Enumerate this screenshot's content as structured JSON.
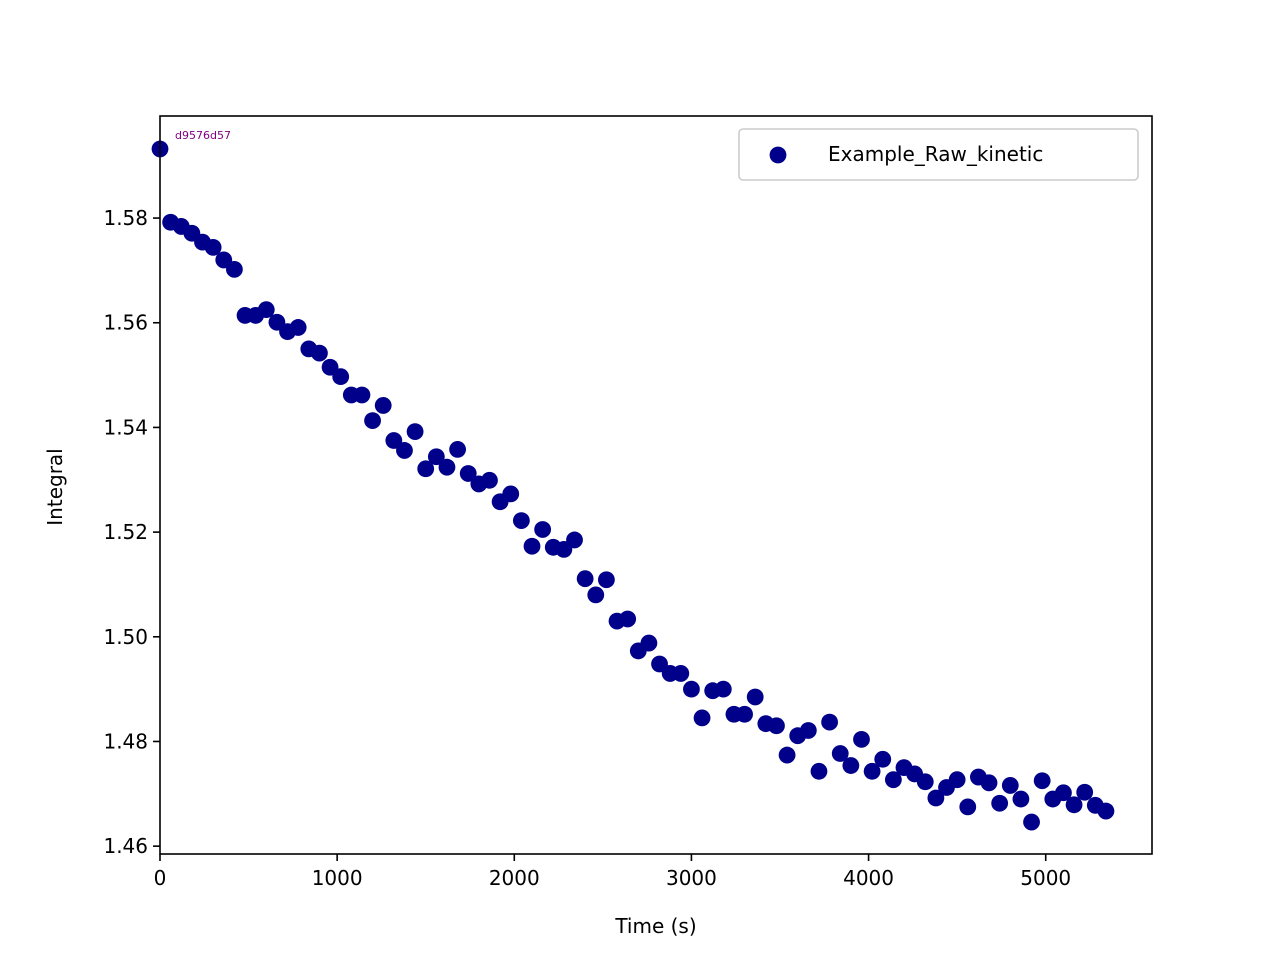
{
  "chart_data": {
    "type": "scatter",
    "title": "",
    "xlabel": "Time (s)",
    "ylabel": "Integral",
    "xlim": [
      0,
      5600
    ],
    "ylim": [
      1.4585,
      1.5995
    ],
    "xticks": [
      0,
      1000,
      2000,
      3000,
      4000,
      5000
    ],
    "xtick_labels": [
      "0",
      "1000",
      "2000",
      "3000",
      "4000",
      "5000"
    ],
    "yticks": [
      1.46,
      1.48,
      1.5,
      1.52,
      1.54,
      1.56,
      1.58
    ],
    "ytick_labels": [
      "1.46",
      "1.48",
      "1.50",
      "1.52",
      "1.54",
      "1.56",
      "1.58"
    ],
    "grid": false,
    "legend_placement": "top-right",
    "annotation": "d9576d57",
    "annotation_color": "#800080",
    "series": [
      {
        "name": "Example_Raw_kinetic",
        "color": "#00008B",
        "x": [
          0,
          60,
          120,
          180,
          240,
          300,
          360,
          420,
          480,
          540,
          600,
          660,
          720,
          780,
          840,
          900,
          960,
          1020,
          1080,
          1140,
          1200,
          1260,
          1320,
          1380,
          1440,
          1500,
          1560,
          1620,
          1680,
          1740,
          1800,
          1860,
          1920,
          1980,
          2040,
          2100,
          2160,
          2220,
          2280,
          2340,
          2400,
          2460,
          2520,
          2580,
          2640,
          2700,
          2760,
          2820,
          2880,
          2940,
          3000,
          3060,
          3120,
          3180,
          3240,
          3300,
          3360,
          3420,
          3480,
          3540,
          3600,
          3660,
          3720,
          3780,
          3840,
          3900,
          3960,
          4020,
          4080,
          4140,
          4200,
          4260,
          4320,
          4380,
          4440,
          4500,
          4560,
          4620,
          4680,
          4740,
          4800,
          4860,
          4920,
          4980,
          5040,
          5100,
          5160,
          5220,
          5280,
          5340
        ],
        "y": [
          1.5932,
          1.5792,
          1.5784,
          1.5771,
          1.5754,
          1.5744,
          1.572,
          1.5702,
          1.5614,
          1.5614,
          1.5625,
          1.5601,
          1.5583,
          1.5591,
          1.555,
          1.5542,
          1.5515,
          1.5497,
          1.5462,
          1.5462,
          1.5413,
          1.5442,
          1.5375,
          1.5356,
          1.5392,
          1.5321,
          1.5344,
          1.5324,
          1.5358,
          1.5312,
          1.5292,
          1.5299,
          1.5258,
          1.5273,
          1.5222,
          1.5173,
          1.5205,
          1.5171,
          1.5167,
          1.5185,
          1.5111,
          1.508,
          1.5109,
          1.503,
          1.5034,
          1.4973,
          1.4988,
          1.4948,
          1.493,
          1.493,
          1.49,
          1.4845,
          1.4897,
          1.49,
          1.4852,
          1.4852,
          1.4885,
          1.4834,
          1.483,
          1.4774,
          1.4811,
          1.4821,
          1.4743,
          1.4837,
          1.4777,
          1.4754,
          1.4804,
          1.4743,
          1.4766,
          1.4727,
          1.475,
          1.4738,
          1.4723,
          1.4692,
          1.4712,
          1.4727,
          1.4675,
          1.4732,
          1.4721,
          1.4682,
          1.4716,
          1.469,
          1.4646,
          1.4725,
          1.469,
          1.4702,
          1.4679,
          1.4703,
          1.4678,
          1.4667
        ]
      }
    ]
  }
}
